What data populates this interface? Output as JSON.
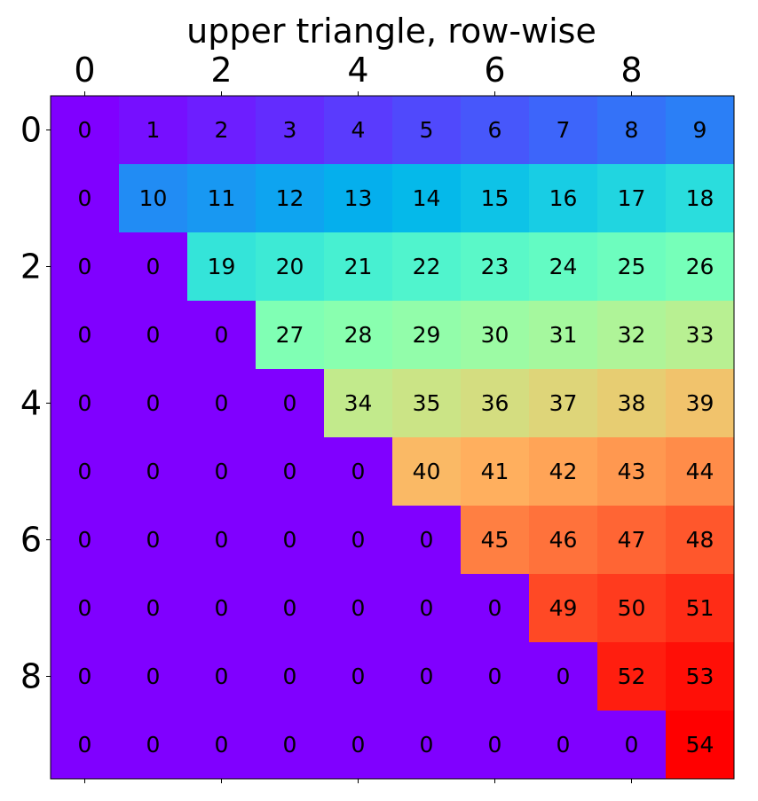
{
  "chart_data": {
    "type": "heatmap",
    "title": "upper triangle, row-wise",
    "x_ticks": [
      "0",
      "2",
      "4",
      "6",
      "8"
    ],
    "y_ticks": [
      "0",
      "2",
      "4",
      "6",
      "8"
    ],
    "x_tick_positions": [
      0,
      2,
      4,
      6,
      8
    ],
    "y_tick_positions": [
      0,
      2,
      4,
      6,
      8
    ],
    "x_axis_position": "top",
    "colormap": "rainbow",
    "vmin": 0,
    "vmax": 54,
    "grid": false,
    "matrix": [
      [
        0,
        1,
        2,
        3,
        4,
        5,
        6,
        7,
        8,
        9
      ],
      [
        0,
        10,
        11,
        12,
        13,
        14,
        15,
        16,
        17,
        18
      ],
      [
        0,
        0,
        19,
        20,
        21,
        22,
        23,
        24,
        25,
        26
      ],
      [
        0,
        0,
        0,
        27,
        28,
        29,
        30,
        31,
        32,
        33
      ],
      [
        0,
        0,
        0,
        0,
        34,
        35,
        36,
        37,
        38,
        39
      ],
      [
        0,
        0,
        0,
        0,
        0,
        40,
        41,
        42,
        43,
        44
      ],
      [
        0,
        0,
        0,
        0,
        0,
        0,
        45,
        46,
        47,
        48
      ],
      [
        0,
        0,
        0,
        0,
        0,
        0,
        0,
        49,
        50,
        51
      ],
      [
        0,
        0,
        0,
        0,
        0,
        0,
        0,
        0,
        52,
        53
      ],
      [
        0,
        0,
        0,
        0,
        0,
        0,
        0,
        0,
        0,
        54
      ]
    ]
  }
}
